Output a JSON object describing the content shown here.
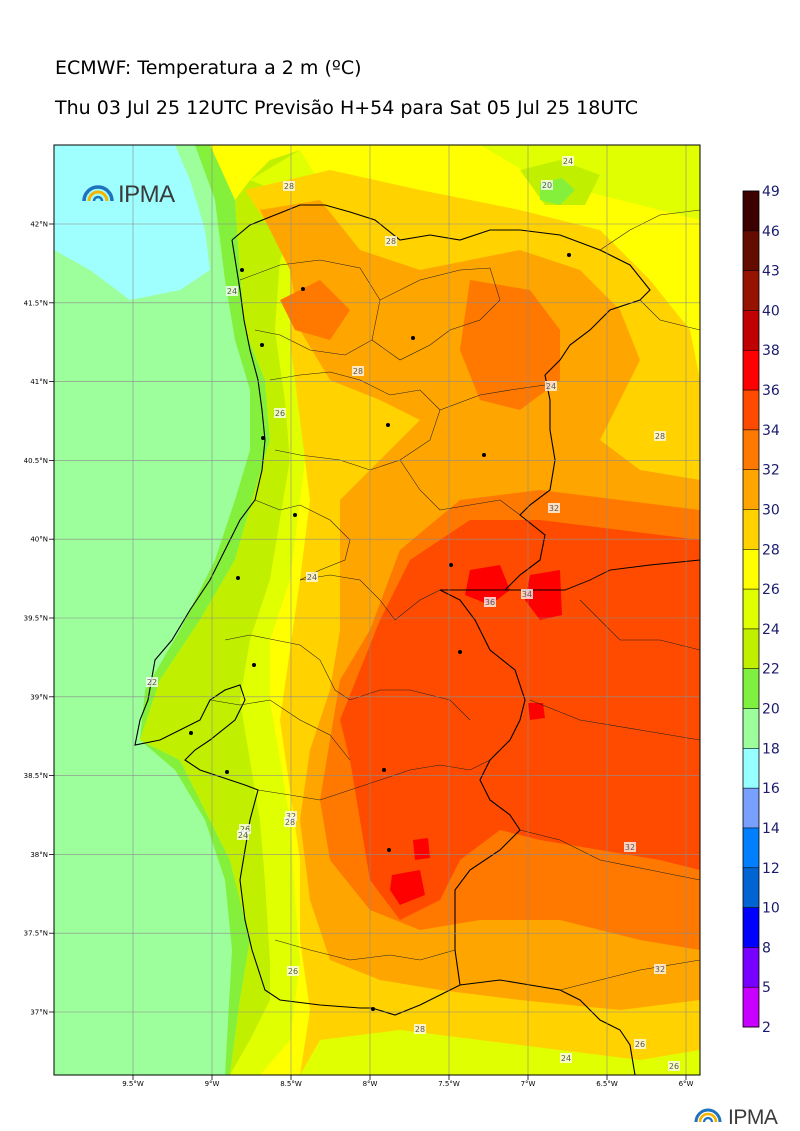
{
  "header": {
    "title": "ECMWF: Temperatura a 2 m (ºC)",
    "subtitle": "Thu 03 Jul 25 12UTC Previsão H+54 para Sat 05 Jul 25 18UTC"
  },
  "logo": {
    "text": "IPMA"
  },
  "map": {
    "lat_labels": [
      "42°N",
      "41.5°N",
      "41°N",
      "40.5°N",
      "40°N",
      "39.5°N",
      "39°N",
      "38.5°N",
      "38°N",
      "37.5°N",
      "37°N"
    ],
    "lon_labels": [
      "9.5°W",
      "9°W",
      "8.5°W",
      "8°W",
      "7.5°W",
      "7°W",
      "6.5°W",
      "6°W"
    ],
    "contour_labels": [
      "24",
      "28",
      "20",
      "28",
      "24",
      "26",
      "28",
      "24",
      "28",
      "22",
      "24",
      "26",
      "32",
      "36",
      "34",
      "32",
      "26",
      "24",
      "26",
      "32",
      "28",
      "32",
      "24",
      "28",
      "26"
    ]
  },
  "colorbar": {
    "labels": [
      "49",
      "46",
      "43",
      "40",
      "38",
      "36",
      "34",
      "32",
      "30",
      "28",
      "26",
      "24",
      "22",
      "20",
      "18",
      "16",
      "14",
      "12",
      "10",
      "8",
      "5",
      "2"
    ],
    "colors": [
      "#3d0000",
      "#640c00",
      "#961300",
      "#c00000",
      "#ff0000",
      "#ff4b00",
      "#ff7800",
      "#ffa500",
      "#ffd200",
      "#ffff00",
      "#e0ff00",
      "#c0f000",
      "#80f040",
      "#9cff9c",
      "#96ffff",
      "#78a0ff",
      "#0080ff",
      "#0064d2",
      "#0000ff",
      "#7800ff",
      "#c800ff"
    ]
  },
  "palette": {
    "sea_cold": "#9fffff",
    "sea_mint": "#9cff9c",
    "sea_green": "#84f03c",
    "t22": "#c0f000",
    "t24": "#e0ff00",
    "t26": "#ffff00",
    "t28": "#ffd200",
    "t30": "#ffa500",
    "t32": "#ff7800",
    "t34": "#ff4b00",
    "t36": "#ff0000",
    "logo_blue": "#1e73be",
    "logo_yellow": "#f5b400"
  }
}
